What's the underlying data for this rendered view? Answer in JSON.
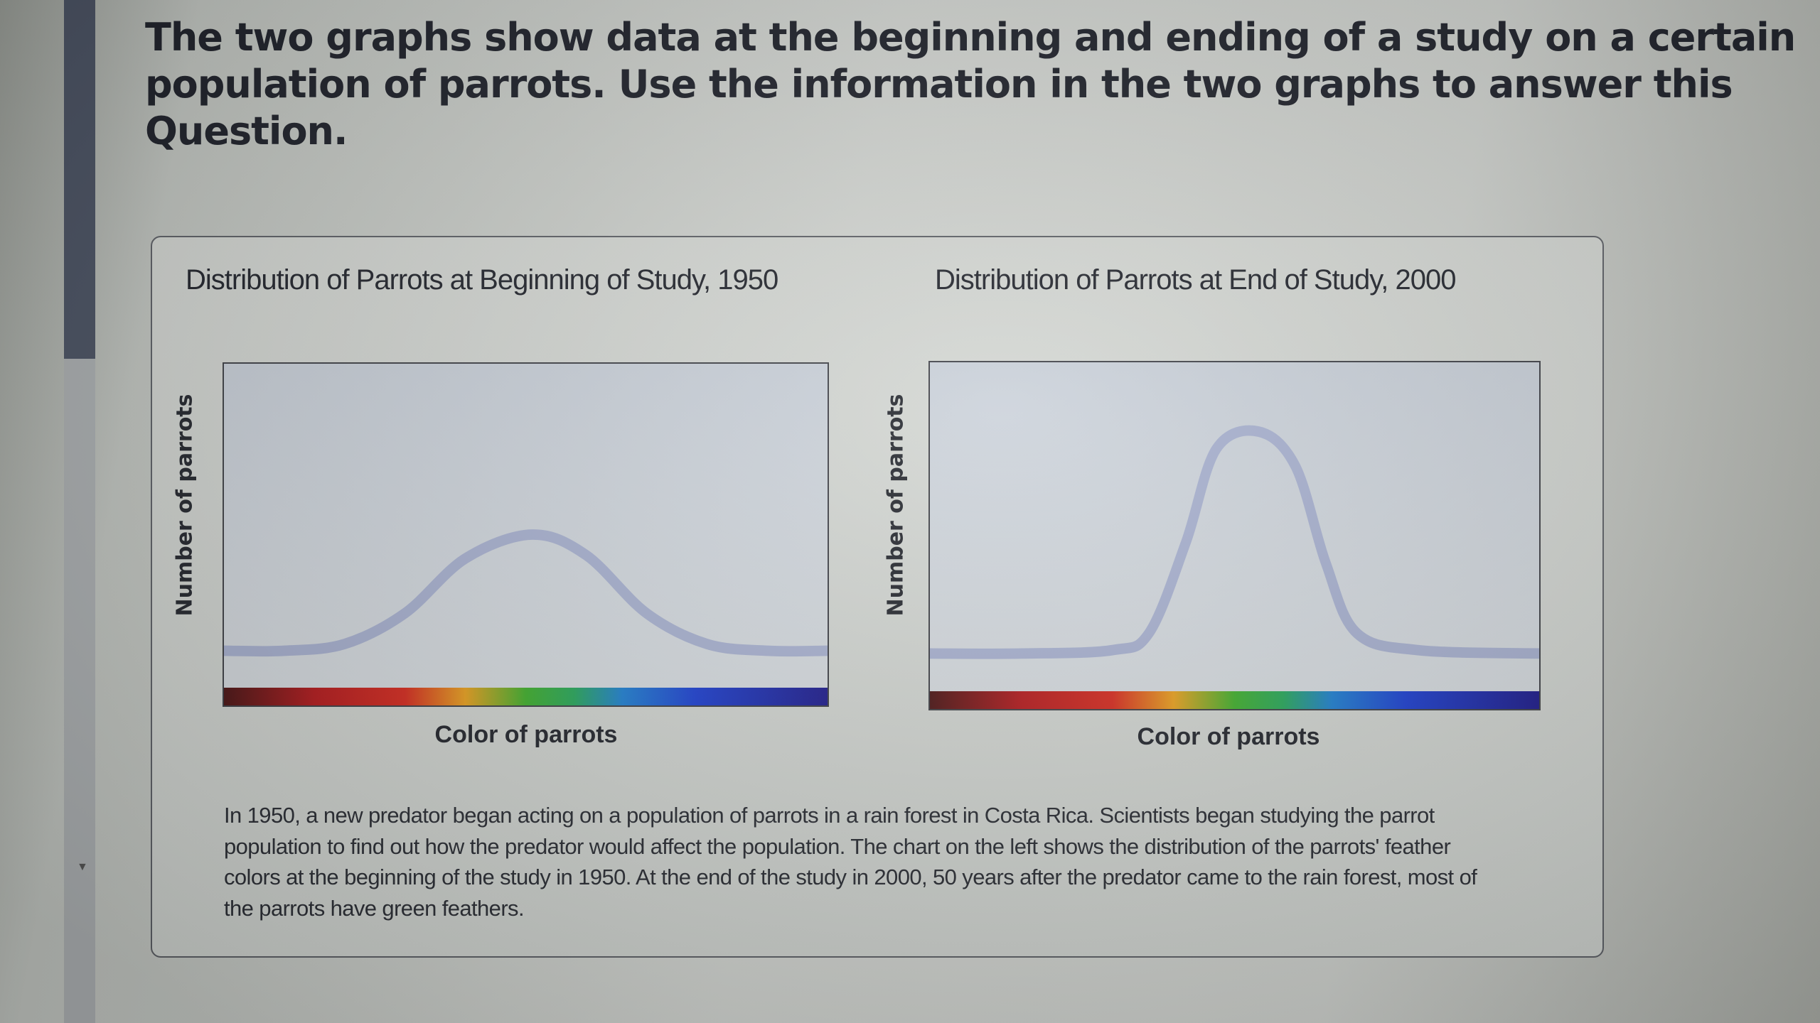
{
  "question": {
    "prompt": "The two graphs show data at the beginning and ending of a study on a certain population of parrots. Use the information in the two graphs to answer this Question."
  },
  "figure": {
    "description_text": "In 1950, a new predator began acting on a population of parrots in a rain forest in Costa Rica. Scientists began studying the parrot population to find out how the predator would affect the population. The chart on the left shows the distribution of the parrots' feather colors at the beginning of the study in 1950. At the end of the study in 2000, 50 years after the predator came to the rain forest, most of the parrots have green feathers."
  },
  "colors": {
    "curve": "#a7b0cf",
    "text": "#1c1f27"
  },
  "chart_data": [
    {
      "type": "line",
      "title": "Distribution of Parrots at Beginning of Study, 1950",
      "xlabel": "Color of parrots",
      "ylabel": "Number of parrots",
      "x_axis": "color spectrum red to violet",
      "x": [
        0,
        0.1,
        0.2,
        0.3,
        0.4,
        0.51,
        0.6,
        0.7,
        0.8,
        0.9,
        1.0
      ],
      "y": [
        0.16,
        0.16,
        0.18,
        0.27,
        0.43,
        0.5,
        0.44,
        0.27,
        0.18,
        0.16,
        0.16
      ],
      "ylim": [
        0,
        1
      ]
    },
    {
      "type": "line",
      "title": "Distribution of Parrots at End of Study, 2000",
      "xlabel": "Color of parrots",
      "ylabel": "Number of parrots",
      "x_axis": "color spectrum red to violet",
      "x": [
        0,
        0.15,
        0.3,
        0.36,
        0.42,
        0.47,
        0.54,
        0.6,
        0.65,
        0.7,
        0.8,
        1.0
      ],
      "y": [
        0.16,
        0.16,
        0.17,
        0.22,
        0.48,
        0.75,
        0.8,
        0.7,
        0.42,
        0.22,
        0.17,
        0.16
      ],
      "ylim": [
        0,
        1
      ]
    }
  ]
}
